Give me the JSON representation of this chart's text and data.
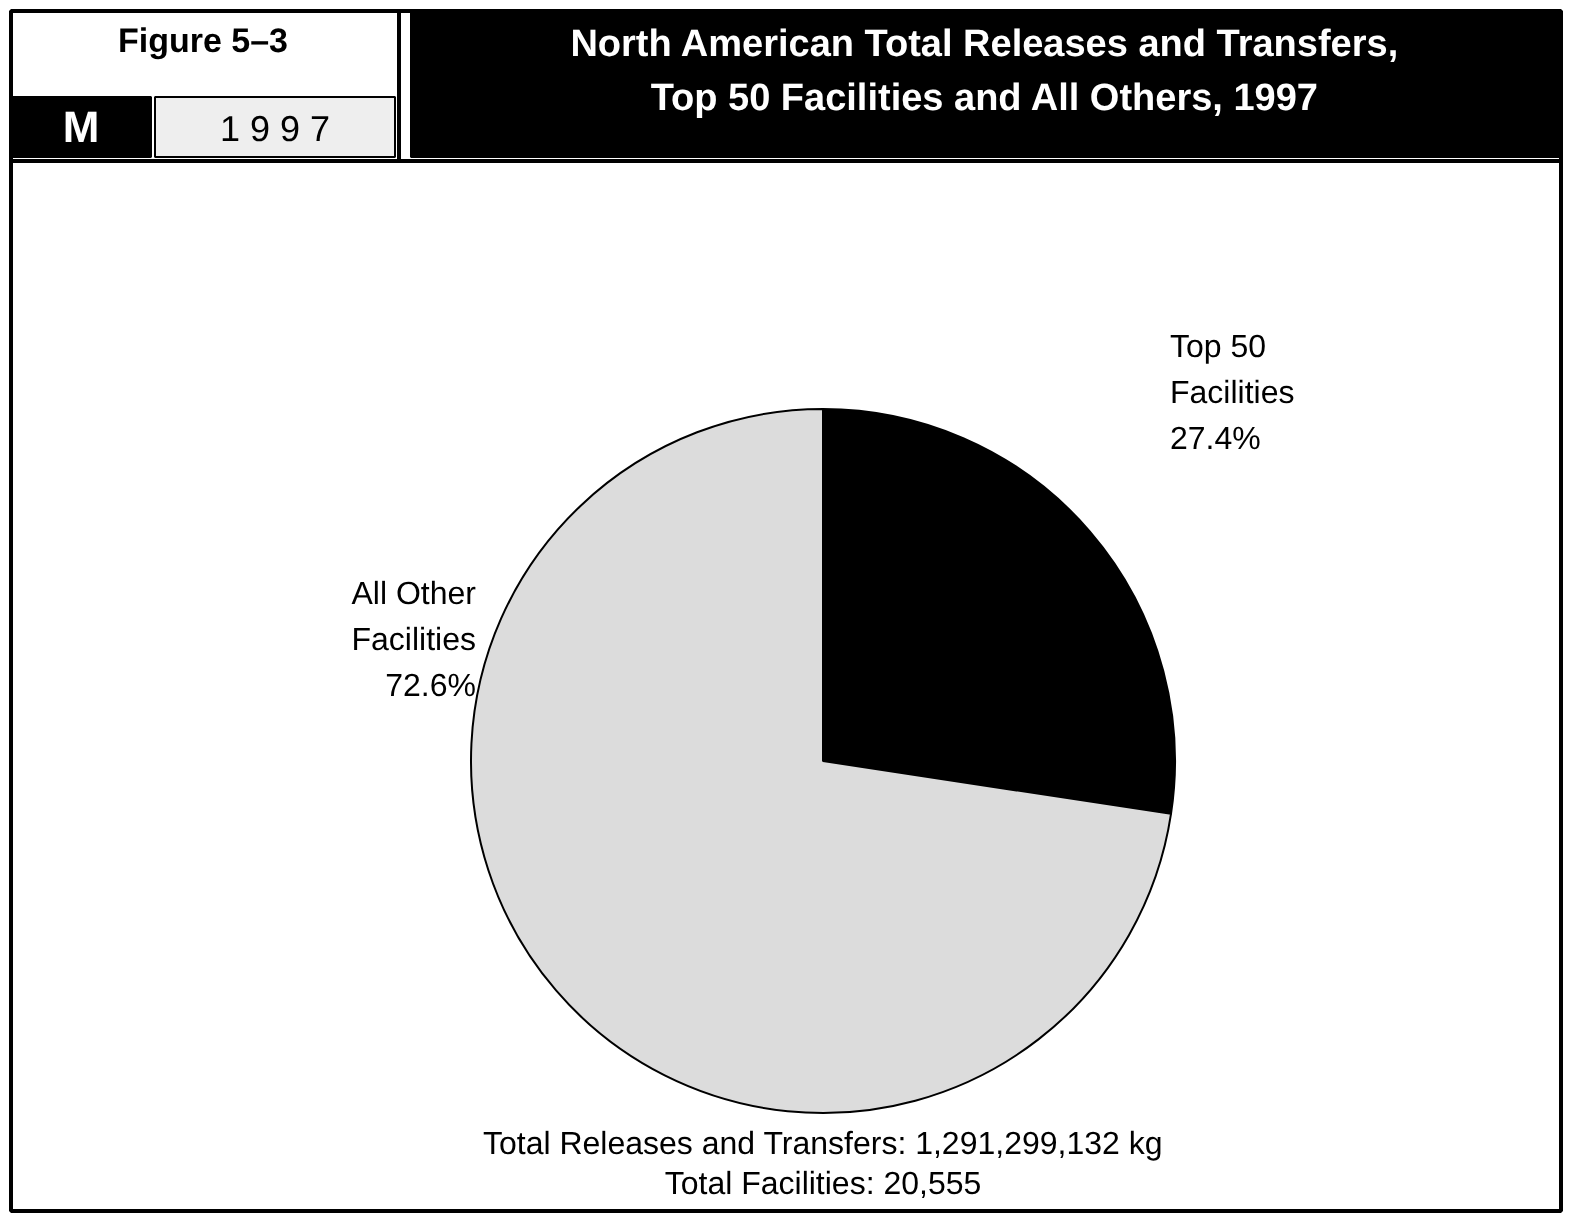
{
  "chart_data": {
    "type": "pie",
    "title": "North American Total Releases and Transfers,\nTop 50 Facilities and All Others, 1997",
    "categories": [
      "Top 50 Facilities",
      "All Other Facilities"
    ],
    "values": [
      27.4,
      72.6
    ],
    "colors": [
      "#000000",
      "#dcdcdc"
    ],
    "value_labels": [
      "27.4%",
      "72.6%"
    ],
    "annotations": [
      "Figure 5–3",
      "M",
      "1 9 9 7",
      "Total Releases and Transfers: 1,291,299,132 kg\nTotal Facilities: 20,555"
    ]
  }
}
